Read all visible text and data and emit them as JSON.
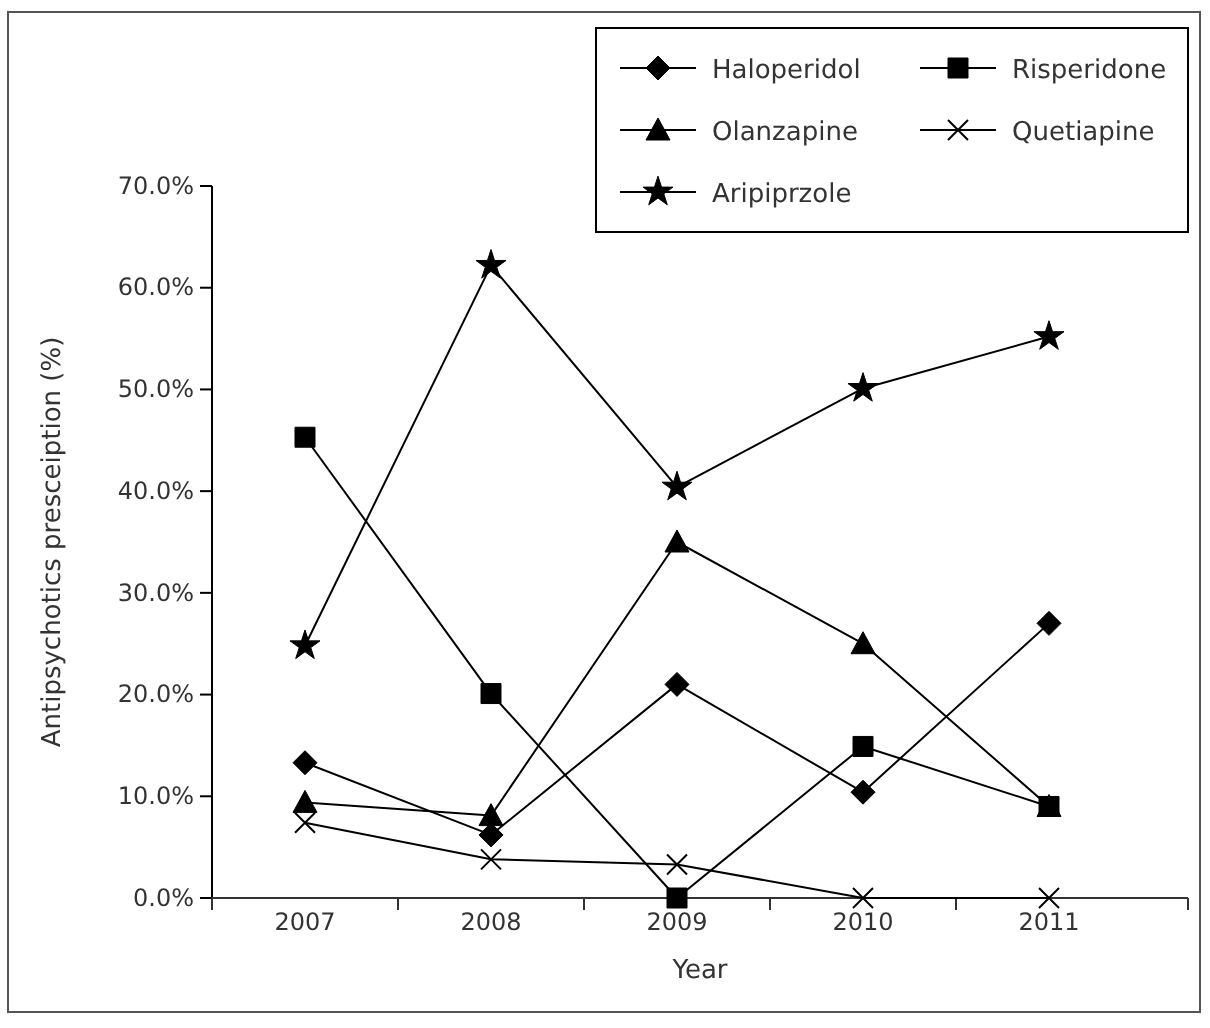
{
  "chart_data": {
    "type": "line",
    "xlabel": "Year",
    "ylabel": "Antipsychotics presceiption (%)",
    "categories": [
      "2007",
      "2008",
      "2009",
      "2010",
      "2011"
    ],
    "ylim": [
      0,
      70
    ],
    "yticks": [
      {
        "value": 0,
        "label": "0.0%"
      },
      {
        "value": 10,
        "label": "10.0%"
      },
      {
        "value": 20,
        "label": "20.0%"
      },
      {
        "value": 30,
        "label": "30.0%"
      },
      {
        "value": 40,
        "label": "40.0%"
      },
      {
        "value": 50,
        "label": "50.0%"
      },
      {
        "value": 60,
        "label": "60.0%"
      },
      {
        "value": 70,
        "label": "70.0%"
      }
    ],
    "grid": false,
    "legend": "top right",
    "line_style": "solid",
    "series": [
      {
        "name": "Haloperidol",
        "color": "#000000",
        "marker": "diamond",
        "values": [
          13.3,
          6.2,
          21.0,
          10.4,
          27.0
        ]
      },
      {
        "name": "Risperidone",
        "color": "#000000",
        "marker": "square",
        "values": [
          45.3,
          20.1,
          0,
          14.9,
          9.0
        ]
      },
      {
        "name": "Olanzapine",
        "color": "#000000",
        "marker": "triangle",
        "values": [
          9.4,
          8.1,
          35.0,
          25.0,
          9.0
        ]
      },
      {
        "name": "Quetiapine",
        "color": "#000000",
        "marker": "cross",
        "values": [
          7.4,
          3.8,
          3.3,
          0,
          0
        ]
      },
      {
        "name": "Aripiprzole",
        "color": "#000000",
        "marker": "star",
        "values": [
          24.8,
          62.2,
          40.4,
          50.1,
          55.2
        ]
      }
    ]
  }
}
